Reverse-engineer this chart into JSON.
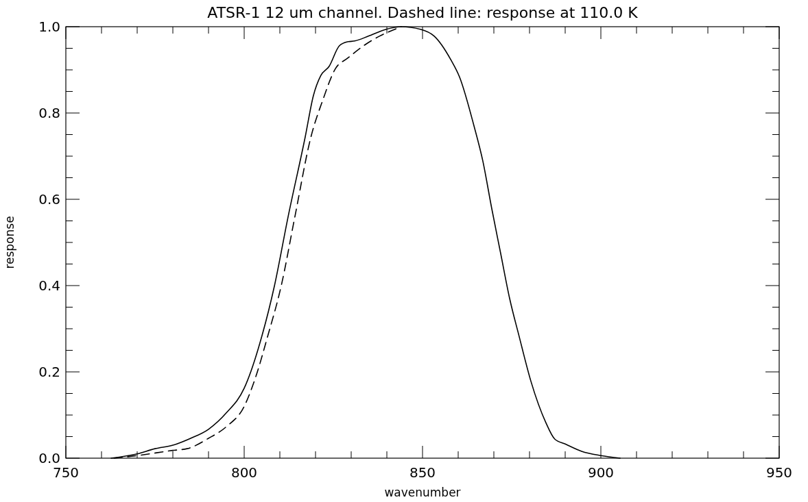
{
  "chart_data": {
    "type": "line",
    "title": "ATSR-1 12 um channel. Dashed line: response at 110.0 K",
    "xlabel": "wavenumber",
    "ylabel": "response",
    "xlim": [
      750,
      950
    ],
    "ylim": [
      0,
      1
    ],
    "xticks": [
      750,
      {
        "value": 760,
        "label": null
      },
      {
        "value": 770,
        "label": null
      },
      {
        "value": 780,
        "label": null
      },
      {
        "value": 790,
        "label": null
      },
      800,
      {
        "value": 810,
        "label": null
      },
      {
        "value": 820,
        "label": null
      },
      {
        "value": 830,
        "label": null
      },
      {
        "value": 840,
        "label": null
      },
      850,
      {
        "value": 860,
        "label": null
      },
      {
        "value": 870,
        "label": null
      },
      {
        "value": 880,
        "label": null
      },
      {
        "value": 890,
        "label": null
      },
      900,
      {
        "value": 910,
        "label": null
      },
      {
        "value": 920,
        "label": null
      },
      {
        "value": 930,
        "label": null
      },
      {
        "value": 940,
        "label": null
      },
      950
    ],
    "yticks": [
      {
        "value": 0,
        "label": "0.0"
      },
      {
        "value": 0.05,
        "label": null
      },
      {
        "value": 0.1,
        "label": null
      },
      {
        "value": 0.15,
        "label": null
      },
      {
        "value": 0.2,
        "label": "0.2"
      },
      {
        "value": 0.25,
        "label": null
      },
      {
        "value": 0.3,
        "label": null
      },
      {
        "value": 0.35,
        "label": null
      },
      {
        "value": 0.4,
        "label": "0.4"
      },
      {
        "value": 0.45,
        "label": null
      },
      {
        "value": 0.5,
        "label": null
      },
      {
        "value": 0.55,
        "label": null
      },
      {
        "value": 0.6,
        "label": "0.6"
      },
      {
        "value": 0.65,
        "label": null
      },
      {
        "value": 0.7,
        "label": null
      },
      {
        "value": 0.75,
        "label": null
      },
      {
        "value": 0.8,
        "label": "0.8"
      },
      {
        "value": 0.85,
        "label": null
      },
      {
        "value": 0.9,
        "label": null
      },
      {
        "value": 0.95,
        "label": null
      },
      {
        "value": 1,
        "label": "1.0"
      }
    ],
    "marker": "none",
    "series": [
      {
        "color": "#000000",
        "line_style": "solid",
        "x": [
          762.7,
          770,
          775,
          780,
          785,
          790,
          795,
          800,
          805,
          808.5,
          812.3,
          817.1,
          819.4,
          821.5,
          823.8,
          826.7,
          829,
          831,
          834.8,
          839.8,
          844,
          849.4,
          853.3,
          857.9,
          860.4,
          864.4,
          866.9,
          869.4,
          871.9,
          874.4,
          877.1,
          880.4,
          884.6,
          887.1,
          890,
          894.6,
          900,
          905.4
        ],
        "values": [
          0,
          0.01,
          0.022,
          0.03,
          0.046,
          0.067,
          0.105,
          0.162,
          0.284,
          0.4,
          0.559,
          0.744,
          0.84,
          0.887,
          0.908,
          0.956,
          0.965,
          0.967,
          0.978,
          0.994,
          1,
          0.994,
          0.978,
          0.924,
          0.883,
          0.771,
          0.689,
          0.579,
          0.475,
          0.371,
          0.282,
          0.178,
          0.082,
          0.044,
          0.033,
          0.016,
          0.006,
          0
        ]
      },
      {
        "color": "#000000",
        "line_style": "dashed",
        "x": [
          763.5,
          770,
          780,
          784,
          790,
          795,
          800,
          803.3,
          806.5,
          810.4,
          814.2,
          818.7,
          822,
          825.6,
          829,
          833.5,
          837.9,
          842.5,
          844
        ],
        "values": [
          0,
          0.006,
          0.018,
          0.022,
          0.046,
          0.073,
          0.12,
          0.19,
          0.28,
          0.4,
          0.559,
          0.744,
          0.829,
          0.903,
          0.927,
          0.956,
          0.978,
          0.995,
          1
        ]
      }
    ]
  }
}
